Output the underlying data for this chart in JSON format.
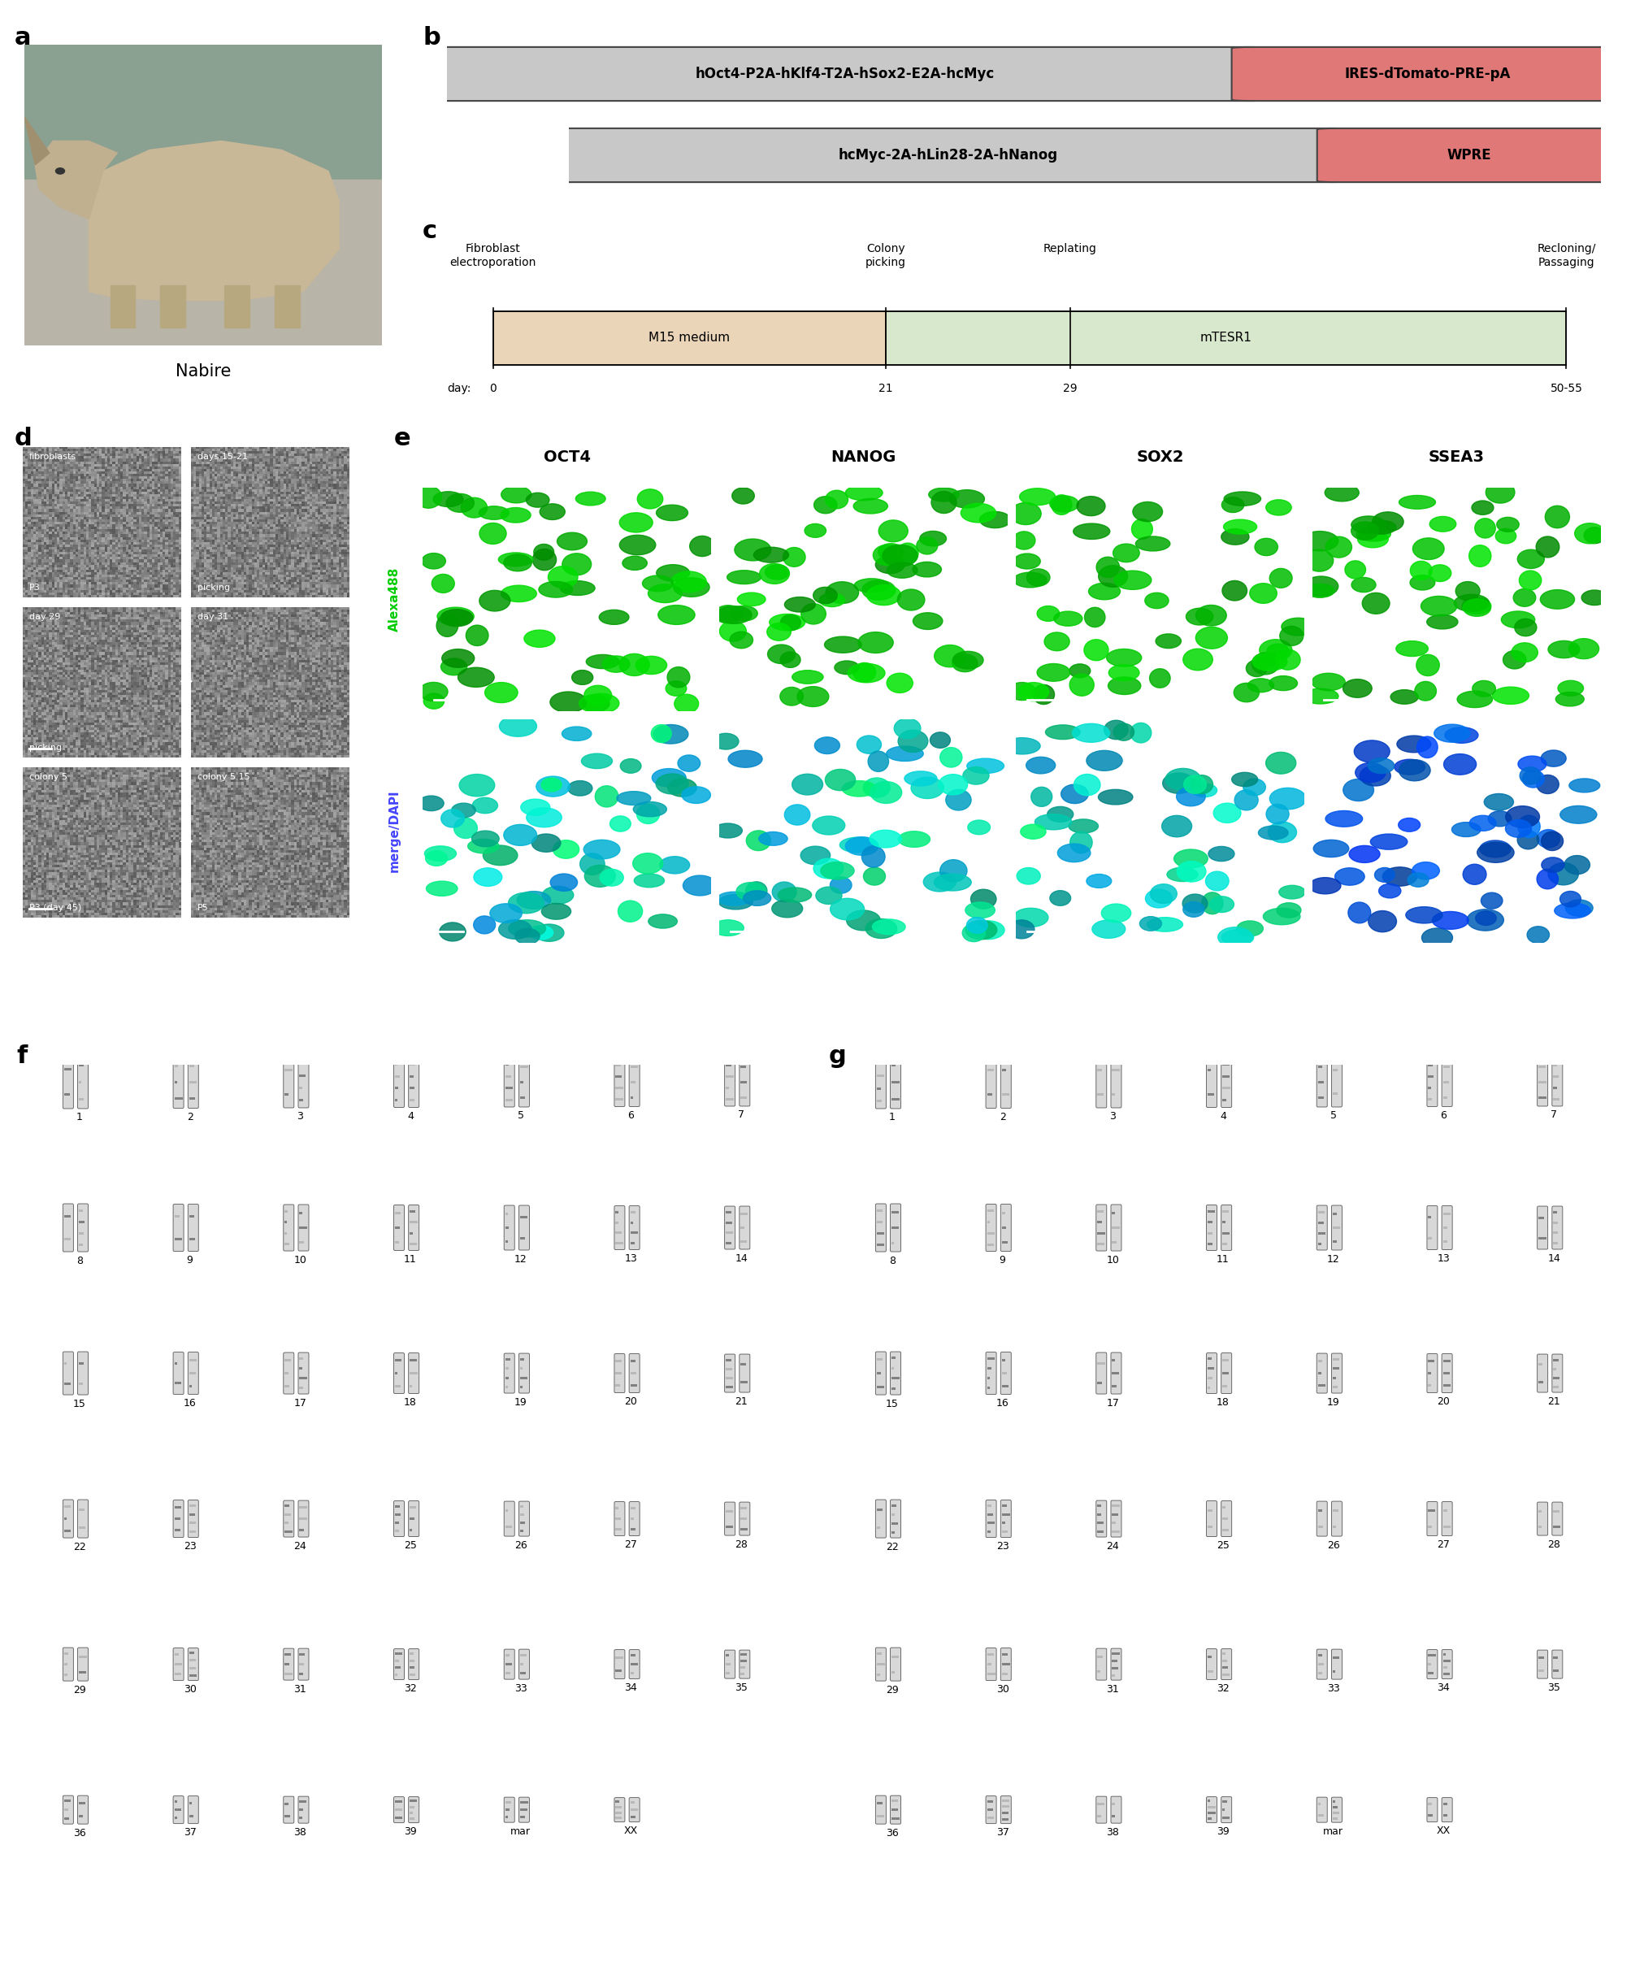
{
  "panel_a_label": "a",
  "panel_b_label": "b",
  "panel_c_label": "c",
  "panel_d_label": "d",
  "panel_e_label": "e",
  "panel_f_label": "f",
  "panel_g_label": "g",
  "rhino_label": "Nabire",
  "construct1_left": "hOct4-P2A-hKlf4-T2A-hSox2-E2A-hcMyc",
  "construct1_right": "IRES-dTomato-PRE-pA",
  "construct2_left": "hcMyc-2A-hLin28-2A-hNanog",
  "construct2_right": "WPRE",
  "construct_left_color": "#c8c8c8",
  "construct_right_color": "#e07878",
  "construct_border_color": "#444444",
  "timeline_labels_top": [
    "Fibroblast\nelectroporation",
    "Colony\npicking",
    "Replating",
    "Recloning/\nPassaging"
  ],
  "timeline_days": [
    "0",
    "21",
    "29",
    "50-55"
  ],
  "timeline_m15_color": "#ead5b8",
  "timeline_mtesr1_color": "#d8e8cc",
  "timeline_m15_label": "M15 medium",
  "timeline_mtesr1_label": "mTESR1",
  "timeline_border_color": "#444444",
  "micro_labels_tl": [
    [
      "fibroblasts",
      "days 15-21"
    ],
    [
      "day 29",
      "day 31"
    ],
    [
      "colony 5",
      "colony 5.15"
    ]
  ],
  "micro_labels_bl": [
    [
      "P3",
      "picking"
    ],
    [
      "picking",
      ""
    ],
    [
      "P3 (day 45)",
      "P5"
    ]
  ],
  "immuno_cols": [
    "OCT4",
    "NANOG",
    "SOX2",
    "SSEA3"
  ],
  "immuno_row1_label": "Alexa488",
  "immuno_row2_label": "merge/DAPI",
  "karyotype_numbers": [
    "1",
    "2",
    "3",
    "4",
    "5",
    "6",
    "7",
    "8",
    "9",
    "10",
    "11",
    "12",
    "13",
    "14",
    "15",
    "16",
    "17",
    "18",
    "19",
    "20",
    "21",
    "22",
    "23",
    "24",
    "25",
    "26",
    "27",
    "28",
    "29",
    "30",
    "31",
    "32",
    "33",
    "34",
    "35",
    "36",
    "37",
    "38",
    "39",
    "mar",
    "XX"
  ],
  "bg_color": "#ffffff",
  "fig_width": 20.07,
  "fig_height": 24.41
}
